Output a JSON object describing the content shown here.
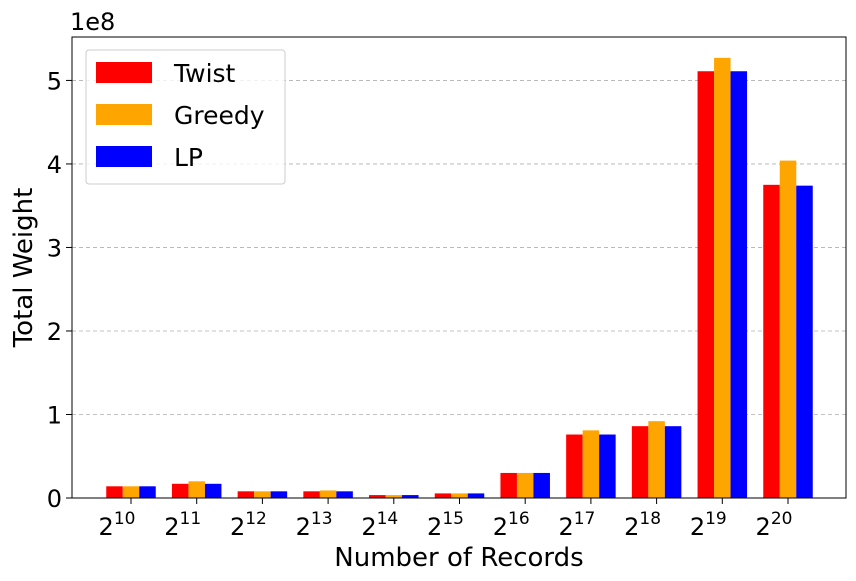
{
  "chart_data": {
    "type": "bar",
    "categories": [
      "2^10",
      "2^11",
      "2^12",
      "2^13",
      "2^14",
      "2^15",
      "2^16",
      "2^17",
      "2^18",
      "2^19",
      "2^20"
    ],
    "category_labels": [
      {
        "base": "2",
        "exp": "10"
      },
      {
        "base": "2",
        "exp": "11"
      },
      {
        "base": "2",
        "exp": "12"
      },
      {
        "base": "2",
        "exp": "13"
      },
      {
        "base": "2",
        "exp": "14"
      },
      {
        "base": "2",
        "exp": "15"
      },
      {
        "base": "2",
        "exp": "16"
      },
      {
        "base": "2",
        "exp": "17"
      },
      {
        "base": "2",
        "exp": "18"
      },
      {
        "base": "2",
        "exp": "19"
      },
      {
        "base": "2",
        "exp": "20"
      }
    ],
    "series": [
      {
        "name": "Twist",
        "color": "#ff0000",
        "values": [
          14000000,
          17000000,
          8000000,
          8000000,
          3500000,
          5500000,
          30000000,
          76000000,
          86000000,
          511000000,
          375000000
        ]
      },
      {
        "name": "Greedy",
        "color": "#ffa500",
        "values": [
          14000000,
          20000000,
          8000000,
          9000000,
          3500000,
          5500000,
          30000000,
          81000000,
          92000000,
          527000000,
          404000000
        ]
      },
      {
        "name": "LP",
        "color": "#0000ff",
        "values": [
          14000000,
          17000000,
          8000000,
          8000000,
          3500000,
          5500000,
          30000000,
          76000000,
          86000000,
          511000000,
          374000000
        ]
      }
    ],
    "xlabel": "Number of Records",
    "ylabel": "Total Weight",
    "ylim": [
      0,
      552000000
    ],
    "y_ticks": [
      0,
      100000000,
      200000000,
      300000000,
      400000000,
      500000000
    ],
    "y_tick_labels": [
      "0",
      "1",
      "2",
      "3",
      "4",
      "5"
    ],
    "offset_text": "1e8",
    "grid": "y-dashed",
    "legend_position": "top-left"
  }
}
